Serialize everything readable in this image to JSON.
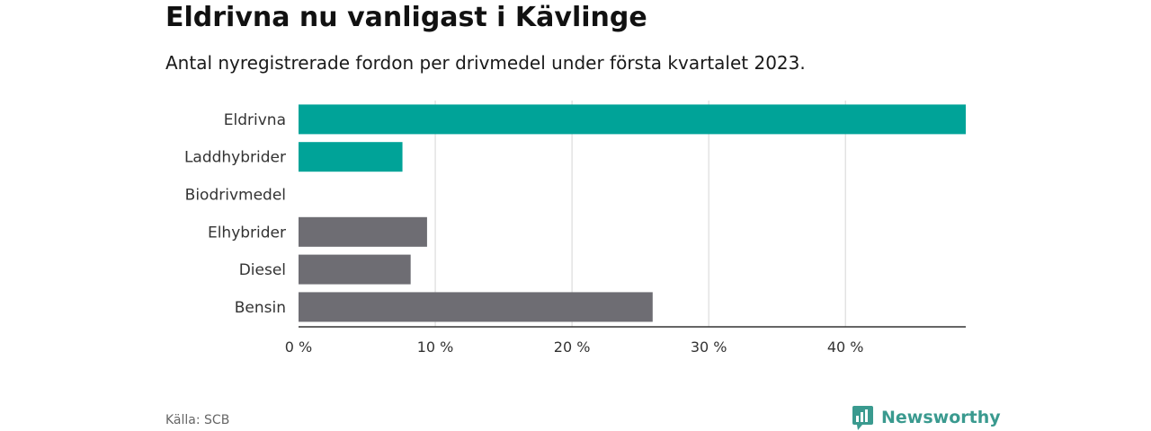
{
  "title": "Eldrivna nu vanligast i Kävlinge",
  "subtitle": "Antal nyregistrerade fordon per drivmedel under första kvartalet 2023.",
  "source": "Källa: SCB",
  "brand": {
    "name": "Newsworthy",
    "icon": "newsworthy-logo-icon",
    "color": "#3a9a8f"
  },
  "chart_data": {
    "type": "bar",
    "orientation": "horizontal",
    "categories": [
      "Eldrivna",
      "Laddhybrider",
      "Biodrivmedel",
      "Elhybrider",
      "Diesel",
      "Bensin"
    ],
    "values": [
      48.8,
      7.6,
      0,
      9.4,
      8.2,
      25.9
    ],
    "colors": [
      "#00a398",
      "#00a398",
      "#00a398",
      "#6e6d73",
      "#6e6d73",
      "#6e6d73"
    ],
    "xticks": [
      0,
      10,
      20,
      30,
      40
    ],
    "xtick_labels": [
      "0 %",
      "10 %",
      "20 %",
      "30 %",
      "40 %"
    ],
    "xlim": [
      0,
      48.8
    ],
    "grid": true,
    "gridColor": "#d6d6d6",
    "axisColor": "#333333"
  }
}
